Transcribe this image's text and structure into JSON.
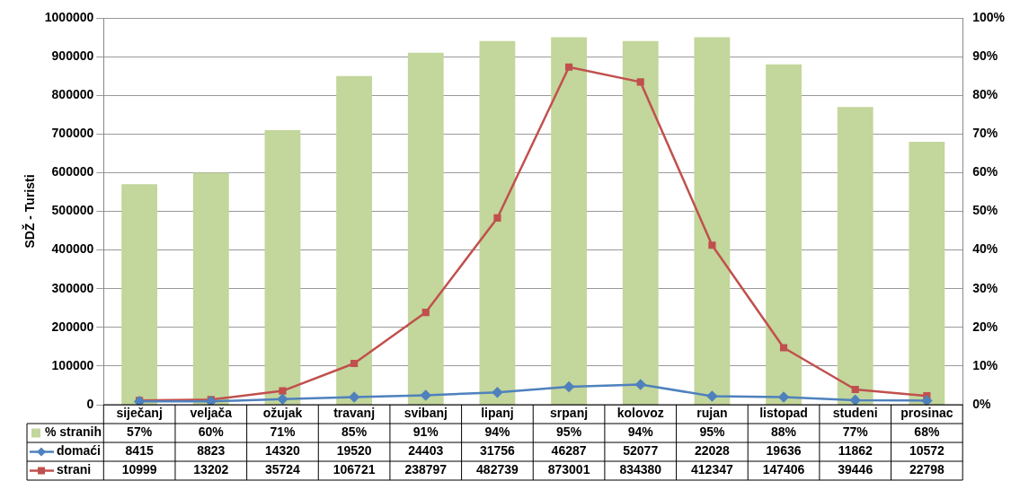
{
  "chart_data": {
    "type": "bar",
    "ylabel": "SDŽ - Turisti",
    "categories": [
      "siječanj",
      "veljača",
      "ožujak",
      "travanj",
      "svibanj",
      "lipanj",
      "srpanj",
      "kolovoz",
      "rujan",
      "listopad",
      "studeni",
      "prosinac"
    ],
    "series": [
      {
        "name": "% stranih",
        "axis": "y2",
        "color": "#c3d69b",
        "values": [
          57,
          60,
          71,
          85,
          91,
          94,
          95,
          94,
          95,
          88,
          77,
          68
        ],
        "value_labels": [
          "57%",
          "60%",
          "71%",
          "85%",
          "91%",
          "94%",
          "95%",
          "94%",
          "95%",
          "88%",
          "77%",
          "68%"
        ]
      },
      {
        "name": "domaći",
        "type": "line",
        "axis": "y",
        "color": "#4f81bd",
        "marker": "diamond",
        "values": [
          8415,
          8823,
          14320,
          19520,
          24403,
          31756,
          46287,
          52077,
          22028,
          19636,
          11862,
          10572
        ]
      },
      {
        "name": "strani",
        "type": "line",
        "axis": "y",
        "color": "#c0504d",
        "marker": "square",
        "values": [
          10999,
          13202,
          35724,
          106721,
          238797,
          482739,
          873001,
          834380,
          412347,
          147406,
          39446,
          22798
        ]
      }
    ],
    "ylim": [
      0,
      1000000
    ],
    "yticks": [
      0,
      100000,
      200000,
      300000,
      400000,
      500000,
      600000,
      700000,
      800000,
      900000,
      1000000
    ],
    "y2lim": [
      0,
      100
    ],
    "y2ticks": [
      {
        "value": 0,
        "label": "0%"
      },
      {
        "value": 10,
        "label": "10%"
      },
      {
        "value": 20,
        "label": "20%"
      },
      {
        "value": 30,
        "label": "30%"
      },
      {
        "value": 40,
        "label": "40%"
      },
      {
        "value": 50,
        "label": "50%"
      },
      {
        "value": 60,
        "label": "60%"
      },
      {
        "value": 70,
        "label": "70%"
      },
      {
        "value": 80,
        "label": "80%"
      },
      {
        "value": 90,
        "label": "90%"
      },
      {
        "value": 100,
        "label": "100%"
      }
    ],
    "grid": "y",
    "legend": "bottom",
    "data_labels": true
  }
}
